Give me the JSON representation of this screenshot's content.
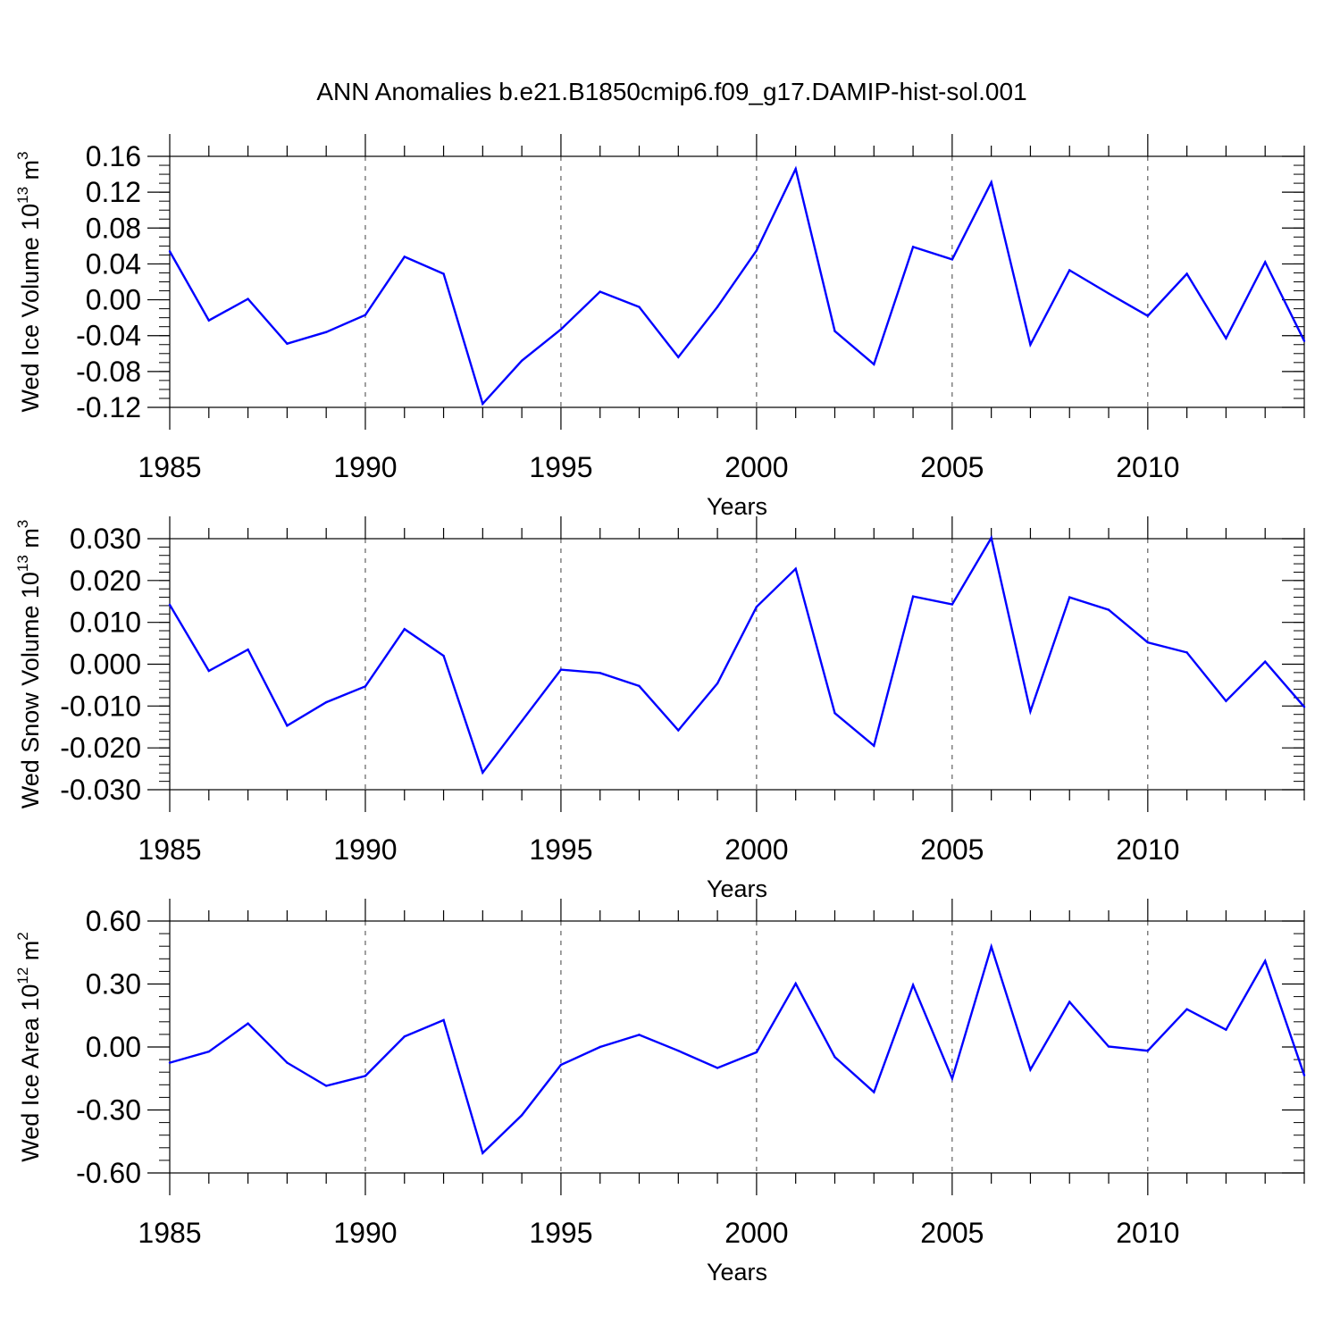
{
  "title": "ANN Anomalies b.e21.B1850cmip6.f09_g17.DAMIP-hist-sol.001",
  "chart_data": [
    {
      "type": "line",
      "xlabel": "Years",
      "ylabel": {
        "text": "Wed Ice Volume 10",
        "sup": "13",
        "unit": " m",
        "unit_sup": "3"
      },
      "xlim": [
        1985,
        2014
      ],
      "ylim": [
        -0.12,
        0.16
      ],
      "yticks": [
        -0.12,
        -0.08,
        -0.04,
        0.0,
        0.04,
        0.08,
        0.12,
        0.16
      ],
      "ytick_labels": [
        "-0.12",
        "-0.08",
        "-0.04",
        "0.00",
        "0.04",
        "0.08",
        "0.12",
        "0.16"
      ],
      "yminor_step": 0.01,
      "xticks": [
        1985,
        1990,
        1995,
        2000,
        2005,
        2010
      ],
      "xtick_labels": [
        "1985",
        "1990",
        "1995",
        "2000",
        "2005",
        "2010"
      ],
      "grid": "vertical-dashed",
      "line_color": "#0000ff",
      "series": [
        {
          "x": [
            1985,
            1986,
            1987,
            1988,
            1989,
            1990,
            1991,
            1992,
            1993,
            1994,
            1995,
            1996,
            1997,
            1998,
            1999,
            2000,
            2001,
            2002,
            2003,
            2004,
            2005,
            2006,
            2007,
            2008,
            2009,
            2010,
            2011,
            2012,
            2013,
            2014
          ],
          "y": [
            0.054,
            -0.023,
            0.001,
            -0.049,
            -0.036,
            -0.017,
            0.048,
            0.029,
            -0.116,
            -0.068,
            -0.033,
            0.009,
            -0.008,
            -0.064,
            -0.008,
            0.055,
            0.146,
            -0.035,
            -0.072,
            0.059,
            0.045,
            0.131,
            -0.05,
            0.033,
            0.007,
            -0.018,
            0.029,
            -0.043,
            0.042,
            -0.046
          ]
        }
      ]
    },
    {
      "type": "line",
      "xlabel": "Years",
      "ylabel": {
        "text": "Wed Snow Volume 10",
        "sup": "13",
        "unit": " m",
        "unit_sup": "3"
      },
      "xlim": [
        1985,
        2014
      ],
      "ylim": [
        -0.03,
        0.03
      ],
      "yticks": [
        -0.03,
        -0.02,
        -0.01,
        0.0,
        0.01,
        0.02,
        0.03
      ],
      "ytick_labels": [
        "-0.030",
        "-0.020",
        "-0.010",
        "0.000",
        "0.010",
        "0.020",
        "0.030"
      ],
      "yminor_step": 0.002,
      "xticks": [
        1985,
        1990,
        1995,
        2000,
        2005,
        2010
      ],
      "xtick_labels": [
        "1985",
        "1990",
        "1995",
        "2000",
        "2005",
        "2010"
      ],
      "grid": "vertical-dashed",
      "line_color": "#0000ff",
      "series": [
        {
          "x": [
            1985,
            1986,
            1987,
            1988,
            1989,
            1990,
            1991,
            1992,
            1993,
            1994,
            1995,
            1996,
            1997,
            1998,
            1999,
            2000,
            2001,
            2002,
            2003,
            2004,
            2005,
            2006,
            2007,
            2008,
            2009,
            2010,
            2011,
            2012,
            2013,
            2014
          ],
          "y": [
            0.0142,
            -0.0016,
            0.0035,
            -0.0147,
            -0.0091,
            -0.0053,
            0.0084,
            0.002,
            -0.0259,
            -0.0136,
            -0.0013,
            -0.0021,
            -0.0052,
            -0.0158,
            -0.0046,
            0.0137,
            0.0228,
            -0.0117,
            -0.0195,
            0.0162,
            0.0143,
            0.0302,
            -0.0113,
            0.016,
            0.013,
            0.0052,
            0.0028,
            -0.0088,
            0.0006,
            -0.0102
          ]
        }
      ]
    },
    {
      "type": "line",
      "xlabel": "Years",
      "ylabel": {
        "text": "Wed Ice Area 10",
        "sup": "12",
        "unit": " m",
        "unit_sup": "2"
      },
      "xlim": [
        1985,
        2014
      ],
      "ylim": [
        -0.6,
        0.6
      ],
      "yticks": [
        -0.6,
        -0.3,
        0.0,
        0.3,
        0.6
      ],
      "ytick_labels": [
        "-0.60",
        "-0.30",
        "0.00",
        "0.30",
        "0.60"
      ],
      "yminor_step": 0.06,
      "xticks": [
        1985,
        1990,
        1995,
        2000,
        2005,
        2010
      ],
      "xtick_labels": [
        "1985",
        "1990",
        "1995",
        "2000",
        "2005",
        "2010"
      ],
      "grid": "vertical-dashed",
      "line_color": "#0000ff",
      "series": [
        {
          "x": [
            1985,
            1986,
            1987,
            1988,
            1989,
            1990,
            1991,
            1992,
            1993,
            1994,
            1995,
            1996,
            1997,
            1998,
            1999,
            2000,
            2001,
            2002,
            2003,
            2004,
            2005,
            2006,
            2007,
            2008,
            2009,
            2010,
            2011,
            2012,
            2013,
            2014
          ],
          "y": [
            -0.075,
            -0.022,
            0.112,
            -0.075,
            -0.185,
            -0.138,
            0.05,
            0.128,
            -0.505,
            -0.325,
            -0.085,
            0.0,
            0.058,
            -0.018,
            -0.1,
            -0.025,
            0.302,
            -0.048,
            -0.215,
            0.295,
            -0.15,
            0.478,
            -0.108,
            0.215,
            0.002,
            -0.018,
            0.18,
            0.082,
            0.41,
            -0.135
          ]
        }
      ]
    }
  ]
}
